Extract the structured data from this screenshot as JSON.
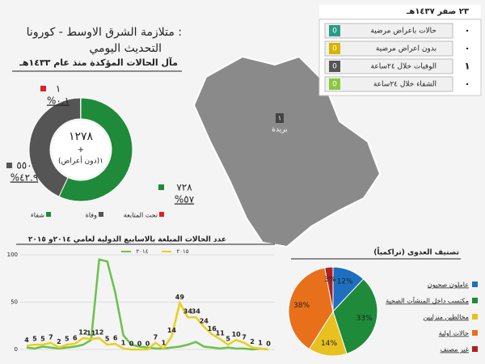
{
  "header": {
    "title_line1": "متلازمة الشرق الاوسط - كورونا :",
    "title_line2": "التحديث اليومي",
    "date": "٢٣ صفر ١٤٣٧هـ"
  },
  "status_table": {
    "rows": [
      {
        "label": "حالات باعراض مرضية",
        "icon": "0",
        "count": "٠",
        "color": "#2a9a8a"
      },
      {
        "label": "بدون اعراض مرضية",
        "icon": "0",
        "count": "٠",
        "color": "#d8b400"
      },
      {
        "label": "الوفيات خلال ٢٤ساعة",
        "icon": "0",
        "count": "١",
        "color": "#555555"
      },
      {
        "label": "الشفاء خلال ٢٤ساعة",
        "icon": "0",
        "count": "٠",
        "color": "#8cc63f"
      }
    ]
  },
  "map": {
    "city": "بريدة",
    "marker": "١"
  },
  "chart_data": [
    {
      "type": "donut",
      "title": "مآل الحالات المؤكدة منذ عام ١٤٣٣هـ",
      "center_total": "١٢٧٨",
      "center_plus": "+",
      "center_note": "١(دون أعراض)",
      "categories": [
        "شفاء",
        "وفاة",
        "تحت المتابعة"
      ],
      "values": [
        728,
        550,
        1
      ],
      "value_labels": [
        "٧٢٨",
        "٥٥٠",
        "١"
      ],
      "percents": [
        57,
        42.9,
        0.1
      ],
      "percent_labels": [
        "%٥٧",
        "%٤٢.٩",
        "%٠.١"
      ],
      "colors": [
        "#1e8a3a",
        "#555555",
        "#e02020"
      ]
    },
    {
      "type": "line",
      "title": "عدد الحالات المبلغة بالاسابيع الدولية لعامي ٢٠١٤و ٢٠١٥",
      "ylim": [
        0,
        100
      ],
      "yticks": [
        0,
        50,
        100
      ],
      "series": [
        {
          "name": "٢٠١٤",
          "color": "#6cc04a",
          "values": [
            2,
            1,
            3,
            2,
            1,
            2,
            3,
            5,
            10,
            95,
            93,
            60,
            15,
            5,
            3,
            2,
            1,
            1,
            2,
            3,
            5,
            8,
            3,
            2,
            1,
            2,
            1,
            1,
            0,
            1,
            0
          ]
        },
        {
          "name": "٢٠١٥",
          "color": "#e8d020",
          "values": [
            4,
            5,
            5,
            7,
            2,
            5,
            6,
            12,
            11,
            12,
            5,
            6,
            1,
            0,
            0,
            0,
            7,
            1,
            14,
            49,
            34,
            34,
            24,
            16,
            11,
            5,
            10,
            7,
            2,
            1,
            0
          ]
        }
      ]
    },
    {
      "type": "pie",
      "title": "تصنيف العدوى (تراكمياً)",
      "categories": [
        "عاملون صحيون",
        "مكتسب داخل المنشآت الصحية",
        "مخالطين منزليين",
        "حالات اولية",
        "غير مصنف"
      ],
      "values": [
        12,
        33,
        14,
        38,
        3
      ],
      "value_labels": [
        "12%",
        "33%",
        "14%",
        "38%",
        "3%"
      ],
      "colors": [
        "#1f6fc0",
        "#1e8a3a",
        "#e8c020",
        "#e8701a",
        "#b02020"
      ]
    }
  ]
}
